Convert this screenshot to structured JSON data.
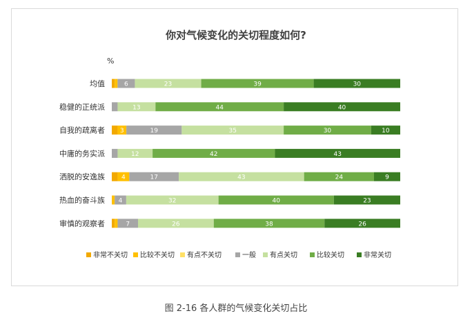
{
  "chart_data": {
    "type": "bar",
    "orientation": "horizontal",
    "stacked": true,
    "title": "你对气候变化的关切程度如何?",
    "unit": "%",
    "legend_position": "bottom",
    "categories": [
      "均值",
      "稳健的正统派",
      "自我的疏离者",
      "中庸的务实派",
      "洒脱的安逸族",
      "热血的奋斗族",
      "审慎的观察者"
    ],
    "series": [
      {
        "name": "非常不关切",
        "color": "#f2a900",
        "values": [
          1,
          0,
          2,
          0,
          2,
          0,
          1
        ],
        "labels": [
          "",
          "",
          "",
          "",
          "",
          "",
          ""
        ]
      },
      {
        "name": "比较不关切",
        "color": "#ffc000",
        "values": [
          1,
          0,
          3,
          0,
          4,
          1,
          1
        ],
        "labels": [
          "",
          "",
          "3",
          "",
          "4",
          "",
          ""
        ]
      },
      {
        "name": "有点不关切",
        "color": "#ffe066",
        "values": [
          0,
          0,
          0,
          0,
          0,
          0,
          0
        ],
        "labels": [
          "",
          "",
          "",
          "",
          "",
          "",
          ""
        ]
      },
      {
        "name": "一般",
        "color": "#a6a6a6",
        "values": [
          6,
          2,
          19,
          2,
          17,
          4,
          7
        ],
        "labels": [
          "6",
          "",
          "19",
          "",
          "17",
          "4",
          "7"
        ]
      },
      {
        "name": "有点关切",
        "color": "#c5e0a0",
        "values": [
          23,
          13,
          35,
          12,
          43,
          32,
          26
        ],
        "labels": [
          "23",
          "13",
          "35",
          "12",
          "43",
          "32",
          "26"
        ]
      },
      {
        "name": "比较关切",
        "color": "#70ad47",
        "values": [
          39,
          44,
          30,
          42,
          24,
          40,
          38
        ],
        "labels": [
          "39",
          "44",
          "30",
          "42",
          "24",
          "40",
          "38"
        ]
      },
      {
        "name": "非常关切",
        "color": "#3a7d23",
        "values": [
          30,
          40,
          10,
          43,
          9,
          23,
          26
        ],
        "labels": [
          "30",
          "40",
          "10",
          "43",
          "9",
          "23",
          "26"
        ]
      }
    ]
  },
  "caption": "图 2-16 各人群的气候变化关切占比"
}
